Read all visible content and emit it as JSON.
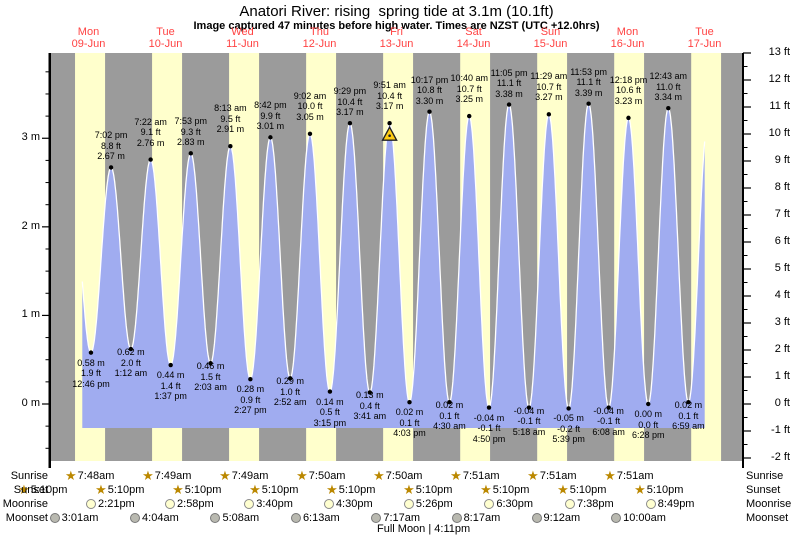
{
  "title": "Anatori River: rising  spring tide at 3.1m (10.1ft)",
  "subtitle": "Image captured 47 minutes before high water. Times are NZST (UTC +12.0hrs)",
  "days": [
    {
      "name": "Mon",
      "date": "09-Jun"
    },
    {
      "name": "Tue",
      "date": "10-Jun"
    },
    {
      "name": "Wed",
      "date": "11-Jun"
    },
    {
      "name": "Thu",
      "date": "12-Jun"
    },
    {
      "name": "Fri",
      "date": "13-Jun"
    },
    {
      "name": "Sat",
      "date": "14-Jun"
    },
    {
      "name": "Sun",
      "date": "15-Jun"
    },
    {
      "name": "Mon",
      "date": "16-Jun"
    },
    {
      "name": "Tue",
      "date": "17-Jun"
    }
  ],
  "chart_data": {
    "type": "area",
    "title": "Anatori River: rising  spring tide at 3.1m (10.1ft)",
    "x_axis": {
      "start": "Mon 09-Jun",
      "end": "Tue 17-Jun",
      "unit": "days",
      "bands": "yellow = daylight, gray = night"
    },
    "y_axis_left": {
      "unit": "m",
      "tick_labels": [
        "3 m",
        "2 m",
        "1 m",
        "0 m"
      ]
    },
    "y_axis_right": {
      "unit": "ft",
      "range_ft": [
        -2,
        13
      ],
      "tick_labels": [
        "13 ft",
        "12 ft",
        "11 ft",
        "10 ft",
        "9 ft",
        "8 ft",
        "7 ft",
        "6 ft",
        "5 ft",
        "4 ft",
        "3 ft",
        "2 ft",
        "1 ft",
        "0 ft",
        "-1 ft",
        "-2 ft"
      ]
    },
    "tide_events": [
      {
        "day": 0,
        "kind": "low",
        "time": "12:46 pm",
        "ft": "1.9 ft",
        "m": "0.58 m"
      },
      {
        "day": 0,
        "kind": "high",
        "time": "7:02 pm",
        "ft": "8.8 ft",
        "m": "2.67 m"
      },
      {
        "day": 1,
        "kind": "low",
        "time": "1:12 am",
        "ft": "2.0 ft",
        "m": "0.62 m"
      },
      {
        "day": 1,
        "kind": "high",
        "time": "7:22 am",
        "ft": "9.1 ft",
        "m": "2.76 m"
      },
      {
        "day": 1,
        "kind": "low",
        "time": "1:37 pm",
        "ft": "1.4 ft",
        "m": "0.44 m"
      },
      {
        "day": 1,
        "kind": "high",
        "time": "7:53 pm",
        "ft": "9.3 ft",
        "m": "2.83 m"
      },
      {
        "day": 2,
        "kind": "low",
        "time": "2:03 am",
        "ft": "1.5 ft",
        "m": "0.46 m"
      },
      {
        "day": 2,
        "kind": "high",
        "time": "8:13 am",
        "ft": "9.5 ft",
        "m": "2.91 m"
      },
      {
        "day": 2,
        "kind": "low",
        "time": "2:27 pm",
        "ft": "0.9 ft",
        "m": "0.28 m"
      },
      {
        "day": 2,
        "kind": "high",
        "time": "8:42 pm",
        "ft": "9.9 ft",
        "m": "3.01 m"
      },
      {
        "day": 3,
        "kind": "low",
        "time": "2:52 am",
        "ft": "1.0 ft",
        "m": "0.29 m"
      },
      {
        "day": 3,
        "kind": "high",
        "time": "9:02 am",
        "ft": "10.0 ft",
        "m": "3.05 m"
      },
      {
        "day": 3,
        "kind": "low",
        "time": "3:15 pm",
        "ft": "0.5 ft",
        "m": "0.14 m"
      },
      {
        "day": 3,
        "kind": "high",
        "time": "9:29 pm",
        "ft": "10.4 ft",
        "m": "3.17 m"
      },
      {
        "day": 4,
        "kind": "low",
        "time": "3:41 am",
        "ft": "0.4 ft",
        "m": "0.13 m"
      },
      {
        "day": 4,
        "kind": "high",
        "time": "9:51 am",
        "ft": "10.4 ft",
        "m": "3.17 m",
        "marker": true
      },
      {
        "day": 4,
        "kind": "low",
        "time": "4:03 pm",
        "ft": "0.1 ft",
        "m": "0.02 m"
      },
      {
        "day": 4,
        "kind": "high",
        "time": "10:17 pm",
        "ft": "10.8 ft",
        "m": "3.30 m"
      },
      {
        "day": 5,
        "kind": "low",
        "time": "4:30 am",
        "ft": "0.1 ft",
        "m": "0.02 m"
      },
      {
        "day": 5,
        "kind": "high",
        "time": "10:40 am",
        "ft": "10.7 ft",
        "m": "3.25 m"
      },
      {
        "day": 5,
        "kind": "low",
        "time": "4:50 pm",
        "ft": "-0.1 ft",
        "m": "-0.04 m"
      },
      {
        "day": 5,
        "kind": "high",
        "time": "11:05 pm",
        "ft": "11.1 ft",
        "m": "3.38 m"
      },
      {
        "day": 6,
        "kind": "low",
        "time": "5:18 am",
        "ft": "-0.1 ft",
        "m": "-0.04 m"
      },
      {
        "day": 6,
        "kind": "high",
        "time": "11:29 am",
        "ft": "10.7 ft",
        "m": "3.27 m"
      },
      {
        "day": 6,
        "kind": "low",
        "time": "5:39 pm",
        "ft": "-0.2 ft",
        "m": "-0.05 m"
      },
      {
        "day": 6,
        "kind": "high",
        "time": "11:53 pm",
        "ft": "11.1 ft",
        "m": "3.39 m"
      },
      {
        "day": 7,
        "kind": "low",
        "time": "6:08 am",
        "ft": "-0.1 ft",
        "m": "-0.04 m"
      },
      {
        "day": 7,
        "kind": "high",
        "time": "12:18 pm",
        "ft": "10.6 ft",
        "m": "3.23 m"
      },
      {
        "day": 7,
        "kind": "low",
        "time": "6:28 pm",
        "ft": "0.0 ft",
        "m": "0.00 m"
      },
      {
        "day": 8,
        "kind": "high",
        "time": "12:43 am",
        "ft": "11.0 ft",
        "m": "3.34 m"
      },
      {
        "day": 8,
        "kind": "low",
        "time": "6:59 am",
        "ft": "0.1 ft",
        "m": "0.02 m"
      }
    ],
    "capture_marker": {
      "day": 4,
      "time": "9:51 am",
      "symbol": "yellow-triangle"
    }
  },
  "astro": {
    "rows": [
      {
        "label": "Sunrise",
        "icon": "sun-star",
        "times": [
          {
            "day": 0,
            "time": "7:48am"
          },
          {
            "day": 1,
            "time": "7:49am"
          },
          {
            "day": 2,
            "time": "7:49am"
          },
          {
            "day": 3,
            "time": "7:50am"
          },
          {
            "day": 4,
            "time": "7:50am"
          },
          {
            "day": 5,
            "time": "7:51am"
          },
          {
            "day": 6,
            "time": "7:51am"
          },
          {
            "day": 7,
            "time": "7:51am"
          }
        ]
      },
      {
        "label": "Sunset",
        "icon": "sun-star",
        "times": [
          {
            "day": -1,
            "time": "5:10pm"
          },
          {
            "day": 0,
            "time": "5:10pm"
          },
          {
            "day": 1,
            "time": "5:10pm"
          },
          {
            "day": 2,
            "time": "5:10pm"
          },
          {
            "day": 3,
            "time": "5:10pm"
          },
          {
            "day": 4,
            "time": "5:10pm"
          },
          {
            "day": 5,
            "time": "5:10pm"
          },
          {
            "day": 6,
            "time": "5:10pm"
          },
          {
            "day": 7,
            "time": "5:10pm"
          }
        ]
      },
      {
        "label": "Moonrise",
        "icon": "moon-light-circle",
        "times": [
          {
            "day": 0,
            "time": "2:21pm"
          },
          {
            "day": 1,
            "time": "2:58pm"
          },
          {
            "day": 2,
            "time": "3:40pm"
          },
          {
            "day": 3,
            "time": "4:30pm"
          },
          {
            "day": 4,
            "time": "5:26pm"
          },
          {
            "day": 5,
            "time": "6:30pm"
          },
          {
            "day": 6,
            "time": "7:38pm"
          },
          {
            "day": 7,
            "time": "8:49pm"
          }
        ]
      },
      {
        "label": "Moonset",
        "icon": "moon-gray-circle",
        "times": [
          {
            "day": 0,
            "time": "3:01am"
          },
          {
            "day": 1,
            "time": "4:04am"
          },
          {
            "day": 2,
            "time": "5:08am"
          },
          {
            "day": 3,
            "time": "6:13am"
          },
          {
            "day": 4,
            "time": "7:17am"
          },
          {
            "day": 5,
            "time": "8:17am"
          },
          {
            "day": 6,
            "time": "9:12am"
          },
          {
            "day": 7,
            "time": "10:00am"
          }
        ]
      }
    ],
    "note": "Full Moon | 4:11pm"
  },
  "colors": {
    "night_band": "#9b9b9b",
    "day_band": "#ffffcc",
    "tide_fill": "#a0acf0",
    "curve_outline": "#ffffff",
    "date_red": "#ff4343",
    "sun_star": "#bb8800",
    "moonrise_fill": "#ffffd0",
    "moonrise_border": "#8a8a8a",
    "moonset_fill": "#b9b9b0",
    "moonset_border": "#777777",
    "marker_yellow": "#ffcc11",
    "axis": "#000000"
  }
}
